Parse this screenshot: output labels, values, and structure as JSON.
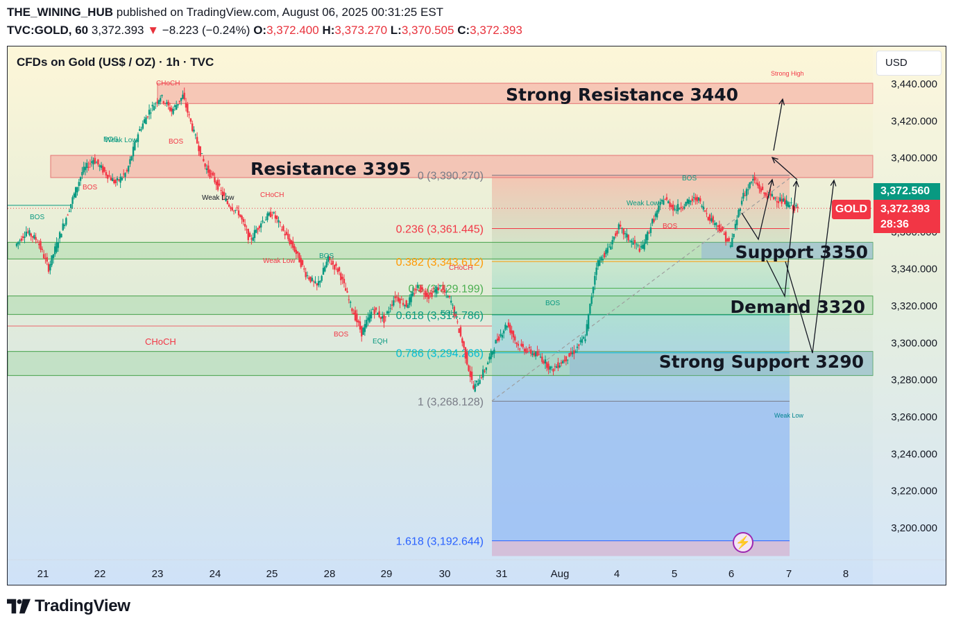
{
  "header": {
    "publisher": "THE_WINING_HUB",
    "published_text": "published on TradingView.com, August 06, 2025 00:31:25 EST",
    "symbol": "TVC:GOLD, 60",
    "last": "3,372.393",
    "change_arrow": "▼",
    "change": "−8.223 (−0.24%)",
    "o_label": "O:",
    "o_value": "3,372.400",
    "h_label": "H:",
    "h_value": "3,373.270",
    "l_label": "L:",
    "l_value": "3,370.505",
    "c_label": "C:",
    "c_value": "3,372.393"
  },
  "chart_title": "CFDs on Gold (US$ / OZ) · 1h · TVC",
  "currency_button": "USD",
  "price_tags": {
    "bid": "3,372.560",
    "last": "3,372.393",
    "countdown": "28:36",
    "symbol_tag": "GOLD"
  },
  "footer": {
    "brand": "TradingView"
  },
  "colors": {
    "up": "#089981",
    "down": "#f23645",
    "resistance_zone": "#f5a9a0",
    "support_zone": "#a5d6a7",
    "fib_area": "#4caf50",
    "target_blue": "#2962ff",
    "background_top": "#fdf6d8",
    "background_bottom": "#cfe2f8"
  },
  "chart_data": {
    "type": "candlestick",
    "ylim": [
      3180,
      3452
    ],
    "y_ticks": [
      3440,
      3420,
      3400,
      3380,
      3360,
      3340,
      3320,
      3300,
      3280,
      3260,
      3240,
      3220,
      3200
    ],
    "y_tick_labels": [
      "3,440.000",
      "3,420.000",
      "3,400.000",
      "3,380.000",
      "3,360.000",
      "3,340.000",
      "3,320.000",
      "3,300.000",
      "3,280.000",
      "3,260.000",
      "3,240.000",
      "3,220.000",
      "3,200.000"
    ],
    "x_ticks": [
      "21",
      "22",
      "23",
      "24",
      "25",
      "28",
      "29",
      "30",
      "31",
      "Aug",
      "4",
      "5",
      "6",
      "7",
      "8"
    ],
    "price_path": [
      [
        0,
        3352
      ],
      [
        1,
        3360
      ],
      [
        2,
        3355
      ],
      [
        3,
        3340
      ],
      [
        4,
        3358
      ],
      [
        5,
        3375
      ],
      [
        6,
        3392
      ],
      [
        7,
        3399
      ],
      [
        8,
        3392
      ],
      [
        9,
        3386
      ],
      [
        10,
        3392
      ],
      [
        11,
        3413
      ],
      [
        12,
        3425
      ],
      [
        13,
        3433
      ],
      [
        14,
        3425
      ],
      [
        15,
        3433
      ],
      [
        16,
        3413
      ],
      [
        17,
        3395
      ],
      [
        18,
        3386
      ],
      [
        19,
        3375
      ],
      [
        20,
        3370
      ],
      [
        21,
        3355
      ],
      [
        22,
        3365
      ],
      [
        23,
        3370
      ],
      [
        24,
        3360
      ],
      [
        25,
        3350
      ],
      [
        26,
        3337
      ],
      [
        27,
        3330
      ],
      [
        28,
        3345
      ],
      [
        29,
        3338
      ],
      [
        30,
        3320
      ],
      [
        31,
        3305
      ],
      [
        32,
        3318
      ],
      [
        33,
        3312
      ],
      [
        34,
        3325
      ],
      [
        35,
        3320
      ],
      [
        36,
        3330
      ],
      [
        37,
        3325
      ],
      [
        38,
        3330
      ],
      [
        39,
        3322
      ],
      [
        40,
        3300
      ],
      [
        41,
        3275
      ],
      [
        42,
        3285
      ],
      [
        43,
        3300
      ],
      [
        44,
        3310
      ],
      [
        45,
        3298
      ],
      [
        46,
        3295
      ],
      [
        47,
        3292
      ],
      [
        48,
        3285
      ],
      [
        49,
        3290
      ],
      [
        50,
        3295
      ],
      [
        51,
        3303
      ],
      [
        52,
        3342
      ],
      [
        53,
        3350
      ],
      [
        54,
        3362
      ],
      [
        55,
        3355
      ],
      [
        56,
        3350
      ],
      [
        57,
        3365
      ],
      [
        58,
        3378
      ],
      [
        59,
        3372
      ],
      [
        60,
        3375
      ],
      [
        61,
        3378
      ],
      [
        62,
        3368
      ],
      [
        63,
        3362
      ],
      [
        64,
        3352
      ],
      [
        65,
        3378
      ],
      [
        66,
        3388
      ],
      [
        67,
        3380
      ],
      [
        68,
        3378
      ],
      [
        69,
        3375
      ],
      [
        70,
        3372
      ]
    ],
    "zones": [
      {
        "label": "Strong Resistance 3440",
        "from": 3429,
        "to": 3440,
        "kind": "resistance"
      },
      {
        "label": "Resistance 3395",
        "from": 3389,
        "to": 3401,
        "kind": "resistance"
      },
      {
        "label": "Support 3350",
        "from": 3345,
        "to": 3354,
        "kind": "support"
      },
      {
        "label": "Demand 3320",
        "from": 3315,
        "to": 3325,
        "kind": "support"
      },
      {
        "label": "Strong Support 3290",
        "from": 3282,
        "to": 3295,
        "kind": "support"
      }
    ],
    "fib_levels": [
      {
        "label": "0 (3,390.270)",
        "value": 3390.27
      },
      {
        "label": "0.236 (3,361.445)",
        "value": 3361.445
      },
      {
        "label": "0.382 (3,343.612)",
        "value": 3343.612
      },
      {
        "label": "0.5 (3,329.199)",
        "value": 3329.199
      },
      {
        "label": "0.618 (3,314.786)",
        "value": 3314.786
      },
      {
        "label": "0.786 (3,294.266)",
        "value": 3294.266
      },
      {
        "label": "1 (3,268.128)",
        "value": 3268.128
      },
      {
        "label": "1.618 (3,192.644)",
        "value": 3192.644
      }
    ],
    "annotations": [
      "Strong High",
      "Weak Low",
      "BOS",
      "CHoCH",
      "EQH",
      "EQL"
    ]
  }
}
